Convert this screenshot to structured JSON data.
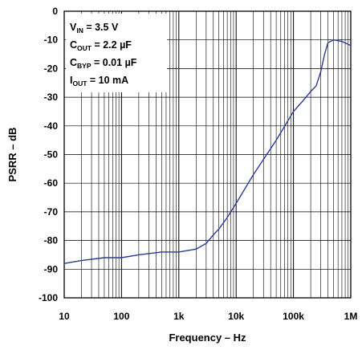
{
  "chart_data": {
    "type": "line",
    "title": "",
    "xlabel": "Frequency – Hz",
    "ylabel": "PSRR – dB",
    "x_scale": "log",
    "xlim": [
      10,
      1000000
    ],
    "ylim": [
      -100,
      0
    ],
    "x_ticks": [
      {
        "value": 10,
        "label": "10"
      },
      {
        "value": 100,
        "label": "100"
      },
      {
        "value": 1000,
        "label": "1k"
      },
      {
        "value": 10000,
        "label": "10k"
      },
      {
        "value": 100000,
        "label": "100k"
      },
      {
        "value": 1000000,
        "label": "1M"
      }
    ],
    "y_ticks": [
      0,
      -10,
      -20,
      -30,
      -40,
      -50,
      -60,
      -70,
      -80,
      -90,
      -100
    ],
    "grid": true,
    "series_color": "#2b3a9a",
    "legend_box": {
      "placement": "top-left",
      "lines": [
        {
          "main": "V",
          "sub": "IN",
          "rest": " = 3.5 V"
        },
        {
          "main": "C",
          "sub": "OUT",
          "rest": " = 2.2 µF"
        },
        {
          "main": "C",
          "sub": "BYP",
          "rest": " = 0.01 µF"
        },
        {
          "main": "I",
          "sub": "OUT",
          "rest": " = 10 mA"
        }
      ]
    },
    "series": [
      {
        "x": [
          10,
          20,
          50,
          100,
          200,
          500,
          1000,
          2000,
          3000,
          4000,
          5000,
          7000,
          10000,
          20000,
          50000,
          100000,
          150000,
          200000,
          250000,
          300000,
          350000,
          400000,
          500000,
          700000,
          1000000
        ],
        "y": [
          -88,
          -87,
          -86,
          -86,
          -85,
          -84,
          -84,
          -83,
          -81,
          -78,
          -76,
          -72,
          -67,
          -57,
          -45,
          -35,
          -31,
          -28,
          -26,
          -21,
          -15,
          -11,
          -10,
          -10.5,
          -12
        ]
      }
    ]
  }
}
